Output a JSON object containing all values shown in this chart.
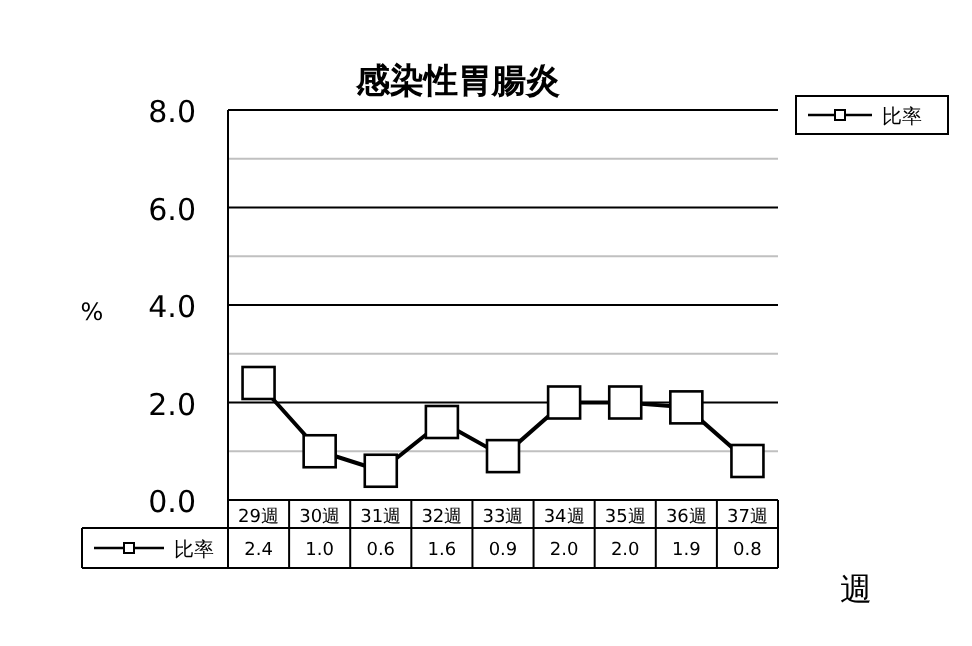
{
  "chart_data": {
    "type": "line",
    "title": "感染性胃腸炎",
    "ylabel": "%",
    "xlabel": "週",
    "categories": [
      "29週",
      "30週",
      "31週",
      "32週",
      "33週",
      "34週",
      "35週",
      "36週",
      "37週"
    ],
    "series": [
      {
        "name": "比率",
        "color": "#000000",
        "values": [
          2.4,
          1.0,
          0.6,
          1.6,
          0.9,
          2.0,
          2.0,
          1.9,
          0.8
        ],
        "value_labels": [
          "2.4",
          "1.0",
          "0.6",
          "1.6",
          "0.9",
          "2.0",
          "2.0",
          "1.9",
          "0.8"
        ]
      }
    ],
    "ylim": [
      0,
      8
    ],
    "yticks": [
      {
        "value": 0,
        "label": "0.0"
      },
      {
        "value": 1,
        "label": null
      },
      {
        "value": 2,
        "label": "2.0"
      },
      {
        "value": 3,
        "label": null
      },
      {
        "value": 4,
        "label": "4.0"
      },
      {
        "value": 5,
        "label": null
      },
      {
        "value": 6,
        "label": "6.0"
      },
      {
        "value": 7,
        "label": null
      },
      {
        "value": 8,
        "label": "8.0"
      }
    ],
    "grid": "y",
    "legend": "bottom left",
    "marker": "square",
    "line_style": "solid"
  }
}
